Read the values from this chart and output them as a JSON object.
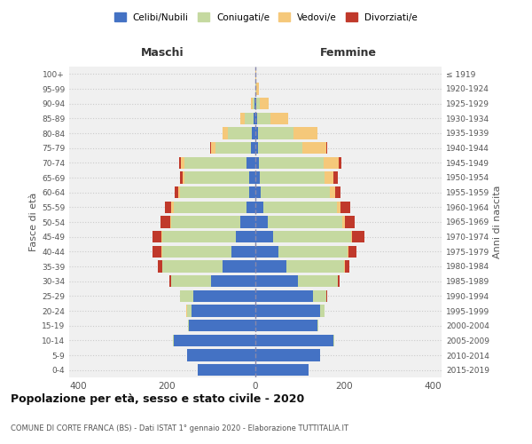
{
  "age_groups": [
    "0-4",
    "5-9",
    "10-14",
    "15-19",
    "20-24",
    "25-29",
    "30-34",
    "35-39",
    "40-44",
    "45-49",
    "50-54",
    "55-59",
    "60-64",
    "65-69",
    "70-74",
    "75-79",
    "80-84",
    "85-89",
    "90-94",
    "95-99",
    "100+"
  ],
  "birth_years": [
    "2015-2019",
    "2010-2014",
    "2005-2009",
    "2000-2004",
    "1995-1999",
    "1990-1994",
    "1985-1989",
    "1980-1984",
    "1975-1979",
    "1970-1974",
    "1965-1969",
    "1960-1964",
    "1955-1959",
    "1950-1954",
    "1945-1949",
    "1940-1944",
    "1935-1939",
    "1930-1934",
    "1925-1929",
    "1920-1924",
    "≤ 1919"
  ],
  "colors": {
    "celibi": "#4472c4",
    "coniugati": "#c5d9a0",
    "vedovi": "#f5c87a",
    "divorziati": "#c0392b"
  },
  "maschi": {
    "celibi": [
      130,
      155,
      185,
      150,
      145,
      140,
      100,
      75,
      55,
      45,
      35,
      20,
      15,
      15,
      20,
      10,
      8,
      4,
      2,
      0,
      0
    ],
    "coniugati": [
      0,
      0,
      2,
      2,
      10,
      30,
      90,
      135,
      155,
      165,
      155,
      165,
      155,
      145,
      140,
      80,
      55,
      20,
      5,
      1,
      0
    ],
    "vedovi": [
      0,
      0,
      0,
      0,
      2,
      0,
      0,
      0,
      2,
      2,
      3,
      5,
      5,
      5,
      8,
      10,
      12,
      10,
      3,
      0,
      0
    ],
    "divorziati": [
      0,
      0,
      0,
      0,
      0,
      0,
      5,
      10,
      20,
      20,
      22,
      15,
      8,
      5,
      5,
      2,
      0,
      0,
      0,
      0,
      0
    ]
  },
  "femmine": {
    "celibi": [
      120,
      145,
      175,
      140,
      145,
      130,
      95,
      70,
      52,
      40,
      28,
      18,
      12,
      10,
      8,
      5,
      5,
      3,
      2,
      0,
      0
    ],
    "coniugati": [
      0,
      0,
      2,
      2,
      10,
      30,
      90,
      130,
      155,
      175,
      168,
      165,
      155,
      145,
      145,
      100,
      80,
      30,
      8,
      2,
      0
    ],
    "vedovi": [
      0,
      0,
      0,
      0,
      0,
      0,
      0,
      1,
      2,
      3,
      5,
      8,
      12,
      20,
      35,
      55,
      55,
      40,
      20,
      5,
      1
    ],
    "divorziati": [
      0,
      0,
      0,
      0,
      0,
      2,
      5,
      10,
      18,
      28,
      22,
      22,
      12,
      10,
      5,
      2,
      0,
      0,
      0,
      0,
      0
    ]
  },
  "xlim": 420,
  "title": "Popolazione per età, sesso e stato civile - 2020",
  "subtitle": "COMUNE DI CORTE FRANCA (BS) - Dati ISTAT 1° gennaio 2020 - Elaborazione TUTTITALIA.IT",
  "xlabel_left": "Maschi",
  "xlabel_right": "Femmine",
  "ylabel_left": "Fasce di età",
  "ylabel_right": "Anni di nascita",
  "bg_color": "#ffffff",
  "plot_bg_color": "#f0f0f0",
  "grid_color": "#cccccc",
  "legend_labels": [
    "Celibi/Nubili",
    "Coniugati/e",
    "Vedovi/e",
    "Divorziati/e"
  ]
}
